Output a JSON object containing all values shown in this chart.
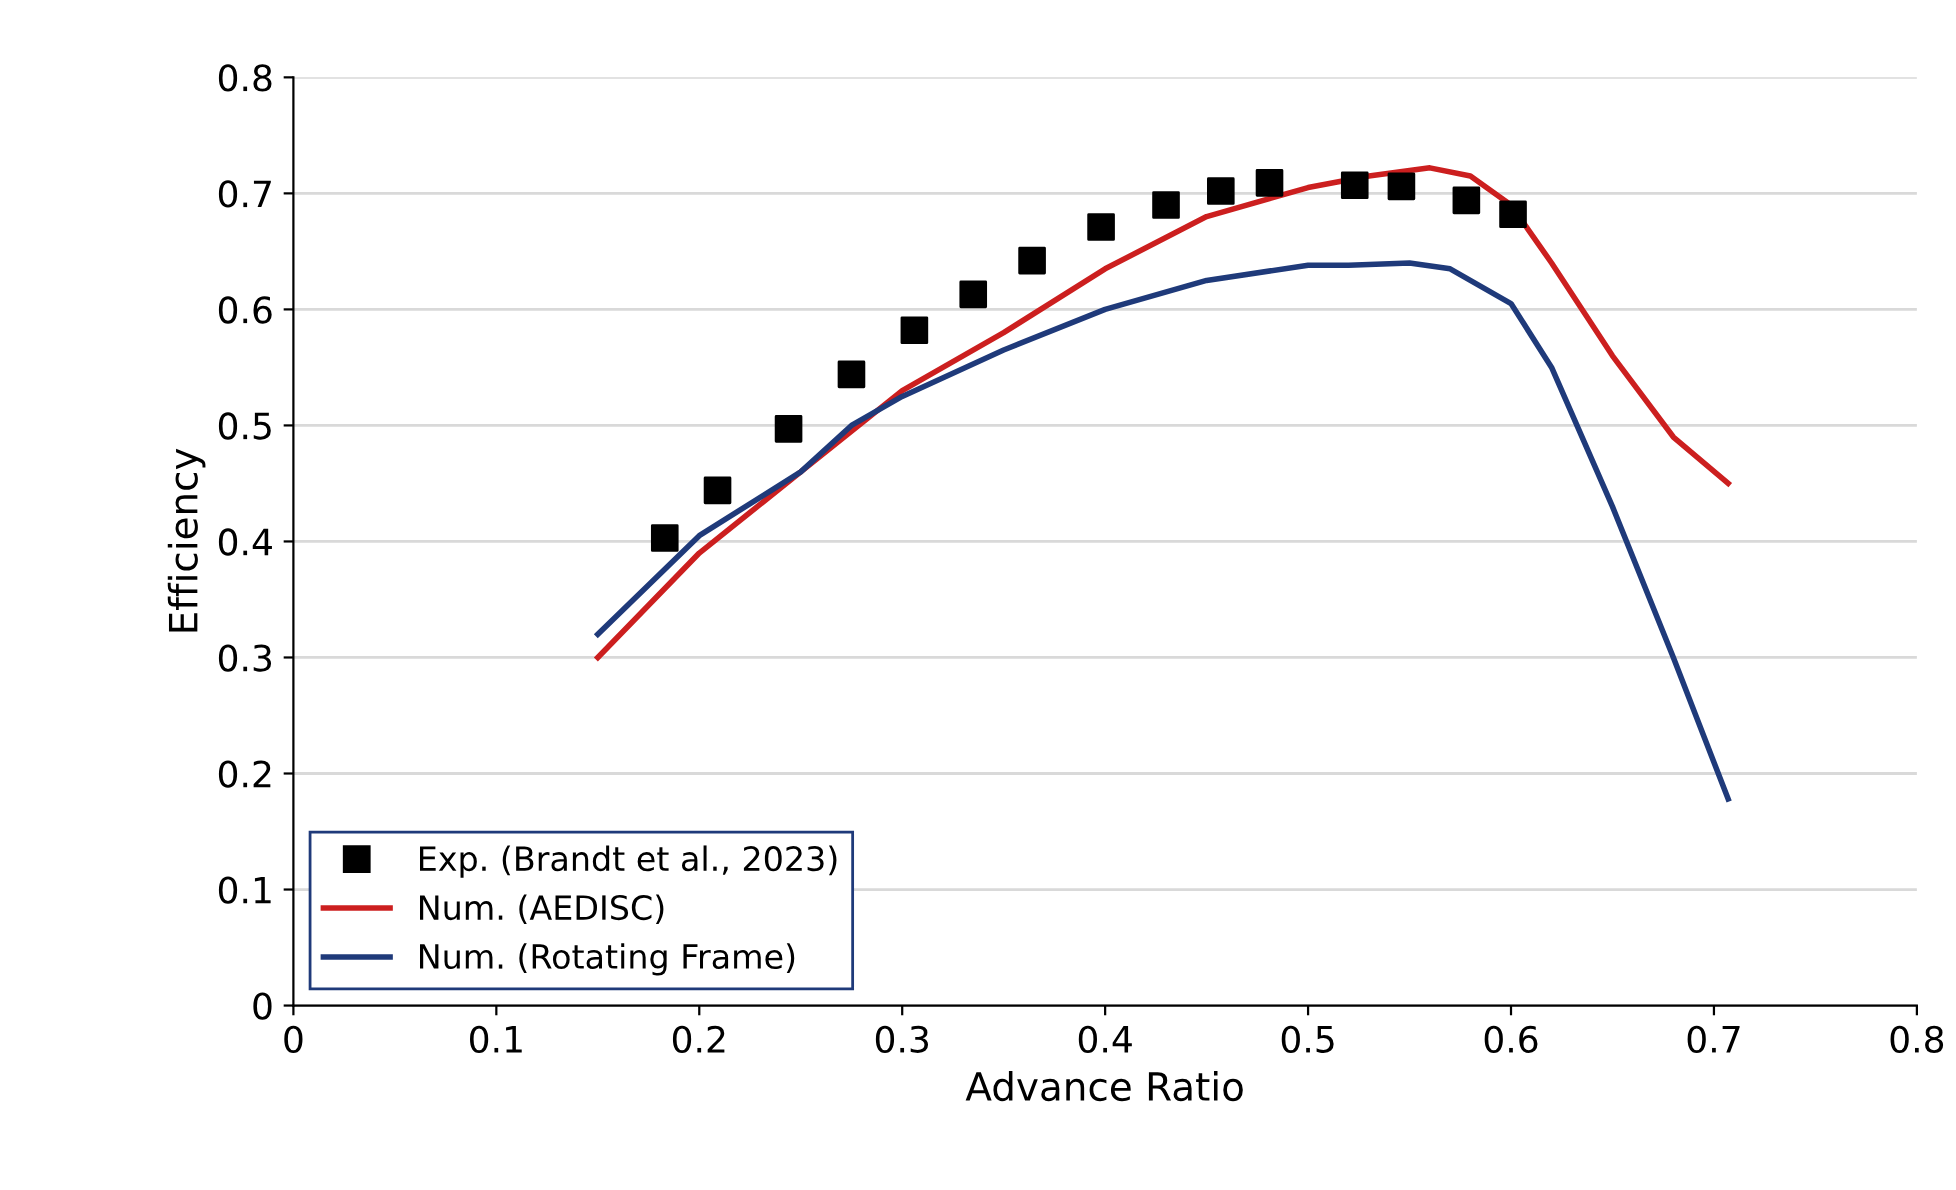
{
  "chart_data": {
    "type": "line",
    "xlabel": "Advance Ratio",
    "ylabel": "Efficiency",
    "xlim": [
      0,
      0.8
    ],
    "xticks": [
      0,
      0.1,
      0.2,
      0.3,
      0.4,
      0.5,
      0.6,
      0.7,
      0.8
    ],
    "ylim": [
      0,
      0.8
    ],
    "yticks": [
      0,
      0.1,
      0.2,
      0.3,
      0.4,
      0.5,
      0.6,
      0.7,
      0.8
    ],
    "grid": "y",
    "legend": "bottom left",
    "series": [
      {
        "name": "Exp. (Brandt et al., 2023)",
        "type": "scatter",
        "marker": "square",
        "color": "#000000",
        "x": [
          0.183,
          0.209,
          0.244,
          0.275,
          0.306,
          0.335,
          0.364,
          0.398,
          0.43,
          0.457,
          0.481,
          0.523,
          0.546,
          0.578,
          0.601
        ],
        "values": [
          0.403,
          0.444,
          0.497,
          0.544,
          0.582,
          0.613,
          0.642,
          0.671,
          0.69,
          0.702,
          0.709,
          0.707,
          0.706,
          0.694,
          0.682
        ]
      },
      {
        "name": "Num. (AEDISC)",
        "color": "#cc1f1f",
        "x": [
          0.15,
          0.2,
          0.25,
          0.3,
          0.35,
          0.4,
          0.45,
          0.5,
          0.53,
          0.56,
          0.58,
          0.6,
          0.62,
          0.65,
          0.68,
          0.707
        ],
        "values": [
          0.3,
          0.39,
          0.46,
          0.53,
          0.58,
          0.635,
          0.68,
          0.705,
          0.715,
          0.722,
          0.715,
          0.69,
          0.64,
          0.56,
          0.49,
          0.45
        ]
      },
      {
        "name": "Num. (Rotating Frame)",
        "color": "#1f3a7a",
        "x": [
          0.15,
          0.2,
          0.25,
          0.275,
          0.3,
          0.35,
          0.4,
          0.45,
          0.5,
          0.52,
          0.55,
          0.57,
          0.6,
          0.62,
          0.65,
          0.68,
          0.707
        ],
        "values": [
          0.32,
          0.405,
          0.46,
          0.5,
          0.525,
          0.565,
          0.6,
          0.625,
          0.638,
          0.638,
          0.64,
          0.635,
          0.605,
          0.55,
          0.43,
          0.3,
          0.178
        ]
      }
    ]
  }
}
